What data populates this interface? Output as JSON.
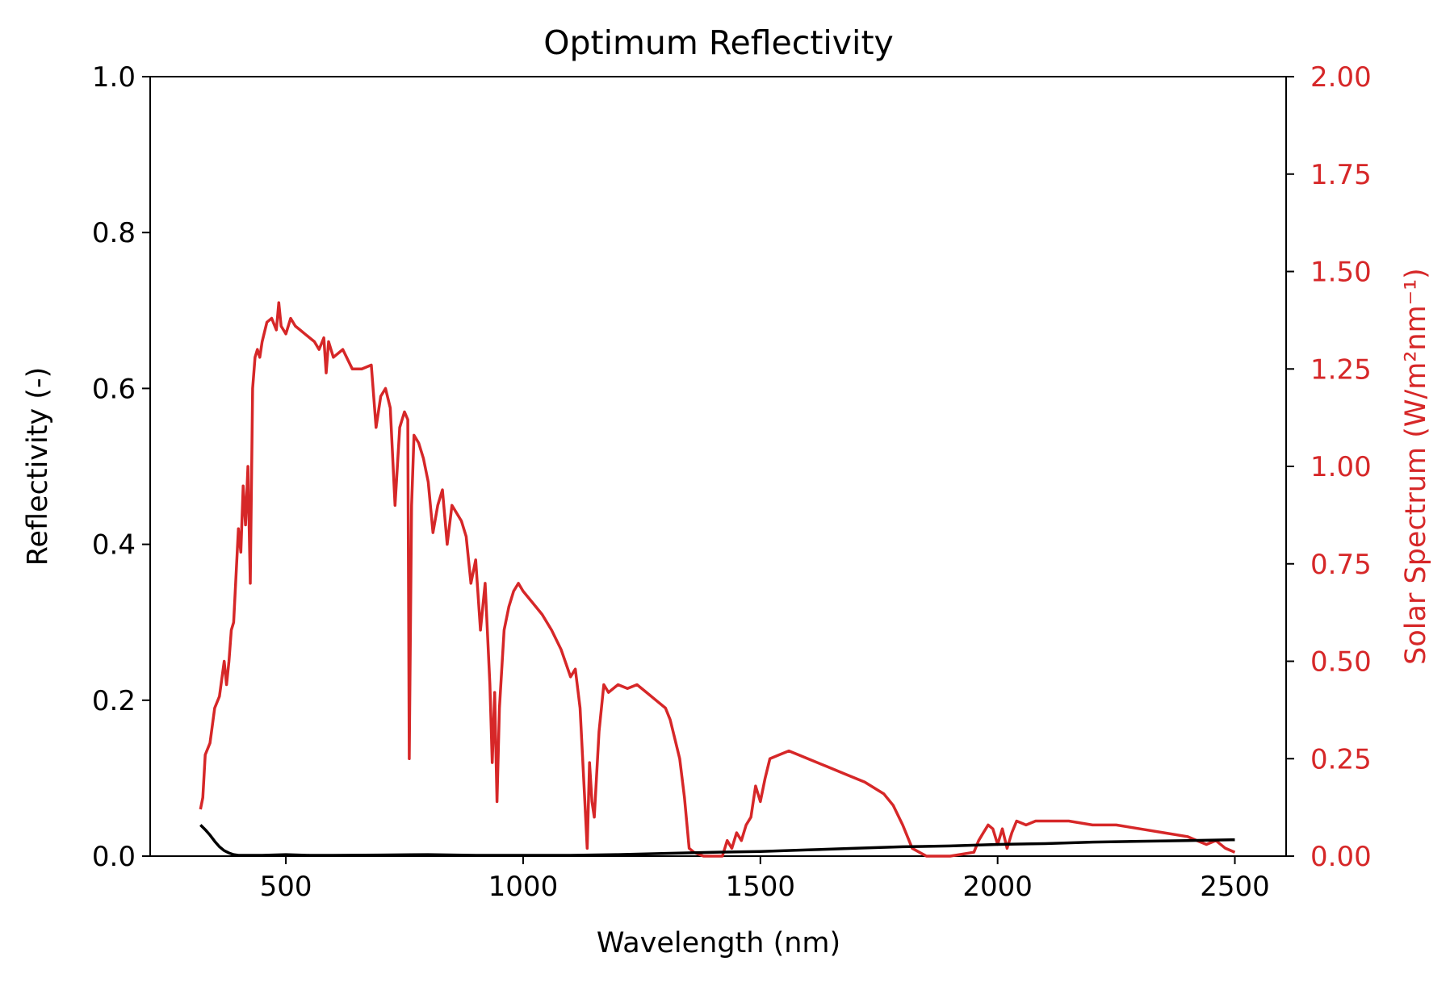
{
  "chart_data": {
    "type": "line",
    "title": "Optimum Reflectivity",
    "xlabel": "Wavelength (nm)",
    "ylabel": "Reflectivity (-)",
    "y2label": "Solar Spectrum (W/m²nm⁻¹)",
    "xlim": [
      214,
      2608
    ],
    "ylim": [
      0,
      1
    ],
    "y2lim": [
      0,
      2
    ],
    "xticks": [
      500,
      1000,
      1500,
      2000,
      2500
    ],
    "xtick_labels": [
      "500",
      "1000",
      "1500",
      "2000",
      "2500"
    ],
    "yticks": [
      0,
      0.2,
      0.4,
      0.6,
      0.8,
      1.0
    ],
    "ytick_labels": [
      "0.0",
      "0.2",
      "0.4",
      "0.6",
      "0.8",
      "1.0"
    ],
    "y2ticks": [
      0,
      0.25,
      0.5,
      0.75,
      1.0,
      1.25,
      1.5,
      1.75,
      2.0
    ],
    "y2tick_labels": [
      "0.00",
      "0.25",
      "0.50",
      "0.75",
      "1.00",
      "1.25",
      "1.50",
      "1.75",
      "2.00"
    ],
    "grid": false,
    "colors": {
      "reflectivity": "#000000",
      "solar": "#d62728",
      "axis": "#000000",
      "right_axis_text": "#d62728"
    },
    "series": [
      {
        "axis": "left",
        "color": "#000000",
        "x": [
          320,
          330,
          340,
          350,
          360,
          370,
          380,
          390,
          400,
          420,
          450,
          500,
          550,
          600,
          700,
          800,
          900,
          1000,
          1100,
          1200,
          1300,
          1400,
          1500,
          1600,
          1700,
          1800,
          1900,
          2000,
          2100,
          2200,
          2300,
          2400,
          2500
        ],
        "values": [
          0.04,
          0.034,
          0.027,
          0.019,
          0.012,
          0.007,
          0.004,
          0.002,
          0.001,
          0.001,
          0.001,
          0.002,
          0.001,
          0.001,
          0.0015,
          0.002,
          0.001,
          0.001,
          0.001,
          0.002,
          0.0035,
          0.005,
          0.006,
          0.008,
          0.01,
          0.012,
          0.013,
          0.015,
          0.016,
          0.018,
          0.019,
          0.02,
          0.021
        ]
      },
      {
        "axis": "right",
        "color": "#d62728",
        "x": [
          320,
          325,
          330,
          340,
          350,
          360,
          370,
          375,
          380,
          385,
          390,
          400,
          405,
          410,
          415,
          420,
          425,
          430,
          435,
          440,
          445,
          450,
          460,
          470,
          480,
          485,
          490,
          495,
          500,
          510,
          520,
          530,
          540,
          550,
          560,
          570,
          580,
          585,
          590,
          600,
          620,
          640,
          660,
          680,
          690,
          700,
          710,
          720,
          730,
          740,
          750,
          757,
          760,
          765,
          770,
          780,
          790,
          800,
          810,
          820,
          830,
          840,
          850,
          860,
          870,
          880,
          890,
          900,
          910,
          920,
          930,
          935,
          940,
          945,
          950,
          960,
          970,
          980,
          990,
          1000,
          1020,
          1040,
          1060,
          1080,
          1100,
          1110,
          1120,
          1130,
          1135,
          1140,
          1145,
          1150,
          1160,
          1170,
          1180,
          1200,
          1220,
          1240,
          1260,
          1280,
          1300,
          1310,
          1320,
          1330,
          1340,
          1350,
          1360,
          1380,
          1400,
          1420,
          1430,
          1440,
          1450,
          1460,
          1470,
          1480,
          1490,
          1500,
          1510,
          1520,
          1540,
          1560,
          1580,
          1600,
          1640,
          1680,
          1720,
          1760,
          1780,
          1800,
          1820,
          1850,
          1900,
          1950,
          1960,
          1970,
          1980,
          1990,
          2000,
          2010,
          2020,
          2030,
          2040,
          2060,
          2080,
          2100,
          2150,
          2200,
          2250,
          2300,
          2350,
          2400,
          2420,
          2440,
          2460,
          2480,
          2500
        ],
        "values": [
          0.12,
          0.15,
          0.26,
          0.29,
          0.38,
          0.41,
          0.5,
          0.44,
          0.5,
          0.58,
          0.6,
          0.84,
          0.78,
          0.95,
          0.85,
          1.0,
          0.7,
          1.2,
          1.28,
          1.3,
          1.28,
          1.32,
          1.37,
          1.38,
          1.35,
          1.42,
          1.36,
          1.35,
          1.34,
          1.38,
          1.36,
          1.35,
          1.34,
          1.33,
          1.32,
          1.3,
          1.33,
          1.24,
          1.32,
          1.28,
          1.3,
          1.25,
          1.25,
          1.26,
          1.1,
          1.18,
          1.2,
          1.15,
          0.9,
          1.1,
          1.14,
          1.12,
          0.25,
          0.9,
          1.08,
          1.06,
          1.02,
          0.96,
          0.83,
          0.9,
          0.94,
          0.8,
          0.9,
          0.88,
          0.86,
          0.82,
          0.7,
          0.76,
          0.58,
          0.7,
          0.44,
          0.24,
          0.42,
          0.14,
          0.38,
          0.58,
          0.64,
          0.68,
          0.7,
          0.68,
          0.65,
          0.62,
          0.58,
          0.53,
          0.46,
          0.48,
          0.38,
          0.14,
          0.02,
          0.24,
          0.14,
          0.1,
          0.32,
          0.44,
          0.42,
          0.44,
          0.43,
          0.44,
          0.42,
          0.4,
          0.38,
          0.35,
          0.3,
          0.25,
          0.15,
          0.02,
          0.01,
          0.0,
          0.0,
          0.0,
          0.04,
          0.02,
          0.06,
          0.04,
          0.08,
          0.1,
          0.18,
          0.14,
          0.2,
          0.25,
          0.26,
          0.27,
          0.26,
          0.25,
          0.23,
          0.21,
          0.19,
          0.16,
          0.13,
          0.08,
          0.02,
          0.0,
          0.0,
          0.01,
          0.04,
          0.06,
          0.08,
          0.07,
          0.03,
          0.07,
          0.02,
          0.06,
          0.09,
          0.08,
          0.09,
          0.09,
          0.09,
          0.08,
          0.08,
          0.07,
          0.06,
          0.05,
          0.04,
          0.03,
          0.04,
          0.02,
          0.01
        ]
      }
    ]
  }
}
